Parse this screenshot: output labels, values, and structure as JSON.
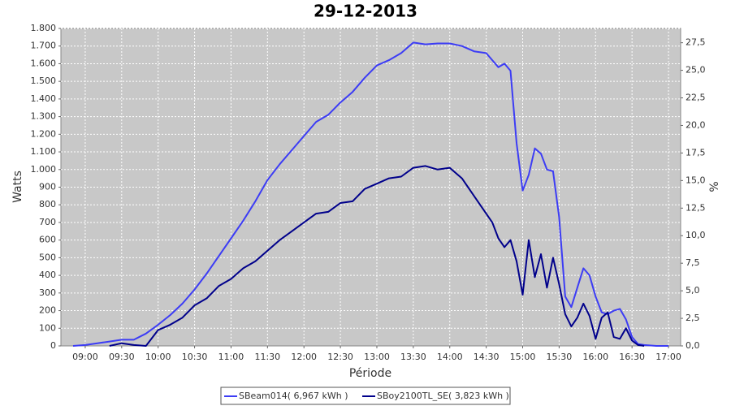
{
  "chart_data": {
    "type": "line",
    "title": "29-12-2013",
    "x_label": "Période",
    "y_label": "Watts",
    "y2_label": "%",
    "x": [
      "08:50",
      "09:00",
      "09:10",
      "09:20",
      "09:30",
      "09:40",
      "09:50",
      "10:00",
      "10:10",
      "10:20",
      "10:30",
      "10:40",
      "10:50",
      "11:00",
      "11:10",
      "11:20",
      "11:30",
      "11:40",
      "11:50",
      "12:00",
      "12:10",
      "12:20",
      "12:30",
      "12:40",
      "12:50",
      "13:00",
      "13:10",
      "13:20",
      "13:30",
      "13:40",
      "13:50",
      "14:00",
      "14:10",
      "14:20",
      "14:30",
      "14:35",
      "14:40",
      "14:45",
      "14:50",
      "14:55",
      "15:00",
      "15:05",
      "15:10",
      "15:15",
      "15:20",
      "15:25",
      "15:30",
      "15:35",
      "15:40",
      "15:45",
      "15:50",
      "15:55",
      "16:00",
      "16:05",
      "16:10",
      "16:15",
      "16:20",
      "16:25",
      "16:30",
      "16:35",
      "16:40",
      "16:50",
      "17:00"
    ],
    "series": [
      {
        "name": "SBeam014( 6,967 kWh )",
        "color": "#3c3cf5",
        "values": [
          0,
          5,
          15,
          25,
          35,
          35,
          70,
          120,
          175,
          240,
          320,
          410,
          510,
          610,
          710,
          820,
          940,
          1030,
          1110,
          1190,
          1270,
          1310,
          1380,
          1440,
          1520,
          1590,
          1620,
          1660,
          1720,
          1710,
          1715,
          1715,
          1700,
          1670,
          1660,
          1620,
          1580,
          1600,
          1560,
          1150,
          880,
          970,
          1120,
          1090,
          1000,
          990,
          730,
          280,
          220,
          330,
          440,
          400,
          280,
          190,
          180,
          200,
          210,
          150,
          50,
          10,
          5,
          0,
          0
        ]
      },
      {
        "name": "SBoy2100TL_SE( 3,823 kWh )",
        "color": "#00008b",
        "values": [
          null,
          null,
          null,
          0,
          15,
          5,
          0,
          90,
          120,
          160,
          230,
          270,
          340,
          380,
          440,
          480,
          540,
          600,
          650,
          700,
          750,
          760,
          810,
          820,
          890,
          920,
          950,
          960,
          1010,
          1020,
          1000,
          1010,
          950,
          850,
          750,
          700,
          610,
          560,
          600,
          480,
          290,
          600,
          390,
          520,
          330,
          500,
          350,
          180,
          110,
          160,
          240,
          170,
          40,
          160,
          190,
          50,
          40,
          100,
          30,
          5,
          0,
          null,
          null
        ]
      }
    ],
    "xlim": [
      "08:40",
      "17:10"
    ],
    "xticks": [
      "09:00",
      "09:30",
      "10:00",
      "10:30",
      "11:00",
      "11:30",
      "12:00",
      "12:30",
      "13:00",
      "13:30",
      "14:00",
      "14:30",
      "15:00",
      "15:30",
      "16:00",
      "16:30",
      "17:00"
    ],
    "ylim": [
      0,
      1800
    ],
    "yticks": [
      0,
      100,
      200,
      300,
      400,
      500,
      600,
      700,
      800,
      900,
      {
        "value": 1000,
        "label": "1.000"
      },
      {
        "value": 1100,
        "label": "1.100"
      },
      {
        "value": 1200,
        "label": "1.200"
      },
      {
        "value": 1300,
        "label": "1.300"
      },
      {
        "value": 1400,
        "label": "1.400"
      },
      {
        "value": 1500,
        "label": "1.500"
      },
      {
        "value": 1600,
        "label": "1.600"
      },
      {
        "value": 1700,
        "label": "1.700"
      },
      {
        "value": 1800,
        "label": "1.800"
      }
    ],
    "y2lim": [
      0,
      28.8
    ],
    "y2ticks": [
      {
        "value": 0,
        "label": "0,0"
      },
      {
        "value": 2.5,
        "label": "2,5"
      },
      {
        "value": 5,
        "label": "5,0"
      },
      {
        "value": 7.5,
        "label": "7,5"
      },
      {
        "value": 10,
        "label": "10,0"
      },
      {
        "value": 12.5,
        "label": "12,5"
      },
      {
        "value": 15,
        "label": "15,0"
      },
      {
        "value": 17.5,
        "label": "17,5"
      },
      {
        "value": 20,
        "label": "20,0"
      },
      {
        "value": 22.5,
        "label": "22,5"
      },
      {
        "value": 25,
        "label": "25,0"
      },
      {
        "value": 27.5,
        "label": "27,5"
      }
    ],
    "grid": true,
    "legend": "bottom"
  }
}
